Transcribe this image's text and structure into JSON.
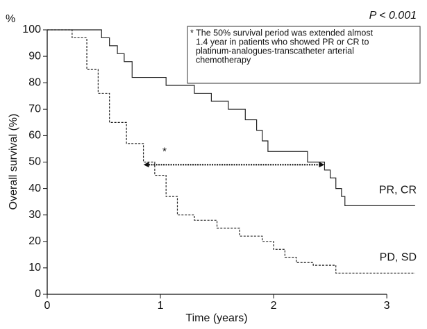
{
  "chart_data": {
    "type": "step",
    "y_unit": "%",
    "xlabel": "Time (years)",
    "ylabel": "Overall survival (%)",
    "p_value": "P < 0.001",
    "note_lines": [
      "* The 50% survival period was extended almost",
      "1.4 year in patients who showed PR or CR to",
      "platinum-analogues-transcatheter arterial",
      "chemotherapy"
    ],
    "arrow_label": "*",
    "arrow": {
      "x": [
        0.85,
        2.45
      ],
      "y": 49
    },
    "xlim": [
      0,
      3.3
    ],
    "xticks": [
      0,
      1,
      2,
      3
    ],
    "ylim": [
      0,
      100
    ],
    "yticks": [
      0,
      10,
      20,
      30,
      40,
      50,
      60,
      70,
      80,
      90,
      100
    ],
    "series": [
      {
        "name": "PR, CR",
        "color": "#222",
        "dash": false,
        "x": [
          0,
          0.48,
          0.55,
          0.62,
          0.68,
          0.75,
          1.05,
          1.3,
          1.45,
          1.6,
          1.75,
          1.85,
          1.9,
          1.95,
          2.3,
          2.45,
          2.5,
          2.55,
          2.6,
          2.63,
          3.25
        ],
        "values": [
          100,
          97,
          94,
          91,
          88,
          82,
          79,
          76,
          73,
          70,
          66,
          62,
          58,
          54,
          50,
          47,
          44,
          40,
          37,
          33.5,
          33.5
        ]
      },
      {
        "name": "PD, SD",
        "color": "#222",
        "dash": true,
        "x": [
          0,
          0.22,
          0.35,
          0.45,
          0.55,
          0.7,
          0.85,
          0.95,
          1.05,
          1.15,
          1.3,
          1.5,
          1.7,
          1.9,
          2.0,
          2.1,
          2.2,
          2.35,
          2.5,
          2.55,
          3.25
        ],
        "values": [
          100,
          97,
          85,
          76,
          65,
          57,
          50,
          45,
          37,
          30,
          28,
          25,
          22,
          20,
          17,
          14,
          12,
          11,
          11,
          8,
          8
        ]
      }
    ]
  }
}
